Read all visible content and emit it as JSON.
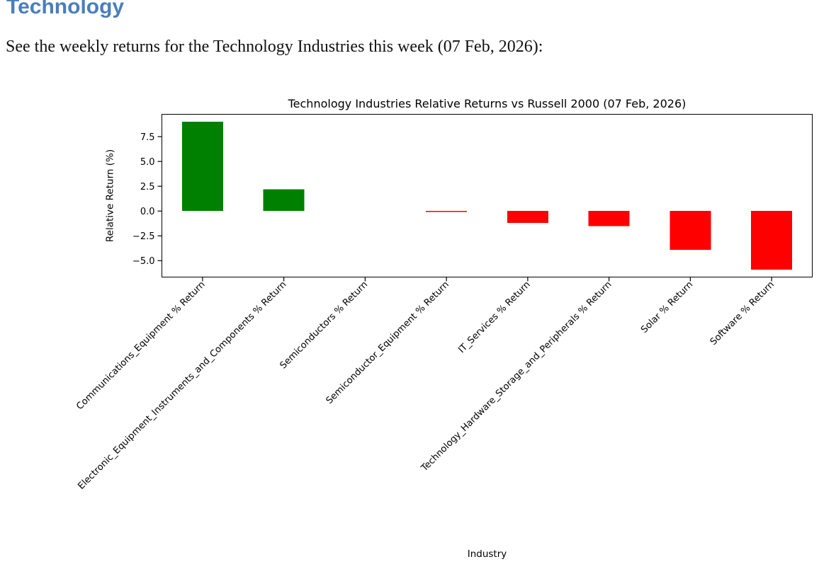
{
  "page": {
    "heading": "Technology",
    "description": "See the weekly returns for the Technology Industries this week (07 Feb, 2026):"
  },
  "colors": {
    "heading_text": "#4a7ebb",
    "positive_bar": "#008000",
    "negative_bar": "#ff0000",
    "axis": "#000000"
  },
  "chart_data": {
    "type": "bar",
    "title": "Technology Industries Relative Returns vs Russell 2000 (07 Feb, 2026)",
    "xlabel": "Industry",
    "ylabel": "Relative Return (%)",
    "categories": [
      "Communications_Equipment % Return",
      "Electronic_Equipment_Instruments_and_Components % Return",
      "Semiconductors % Return",
      "Semiconductor_Equipment % Return",
      "IT_Services % Return",
      "Technology_Hardware_Storage_and_Peripherals % Return",
      "Solar % Return",
      "Software % Return"
    ],
    "values": [
      9.0,
      2.2,
      0.0,
      -0.1,
      -1.2,
      -1.5,
      -3.9,
      -5.9
    ],
    "yticks": [
      7.5,
      5.0,
      2.5,
      0.0,
      -2.5,
      -5.0
    ],
    "ytick_labels": [
      "7.5",
      "5.0",
      "2.5",
      "0.0",
      "−2.5",
      "−5.0"
    ],
    "ylim": [
      -6.65,
      9.75
    ],
    "xtick_rotation_degrees": 45,
    "grid": false,
    "legend": "none",
    "bar_color_rule": "green if value >= 0 else red"
  }
}
